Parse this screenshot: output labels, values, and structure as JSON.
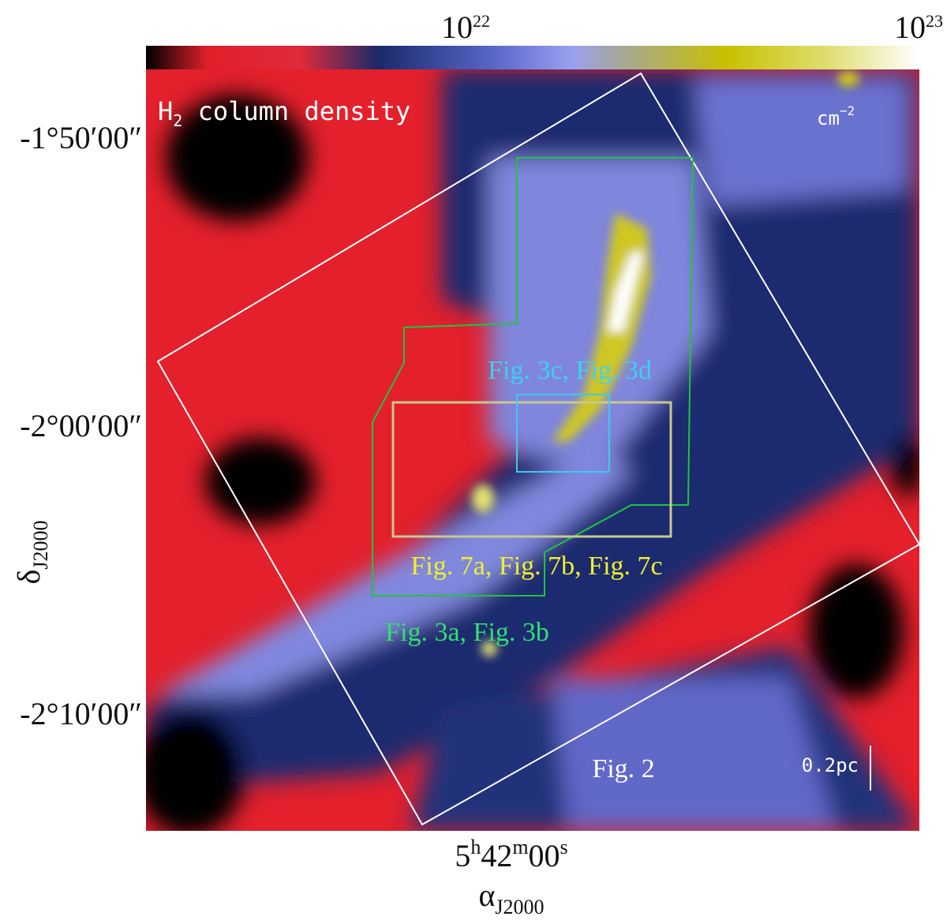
{
  "colorbar": {
    "ticks": [
      {
        "base": "10",
        "exp": "22"
      },
      {
        "base": "10",
        "exp": "23"
      }
    ],
    "unit": {
      "base": "cm",
      "exp": "−2"
    }
  },
  "map": {
    "title": {
      "main": "H",
      "sub": "2",
      "rest": " column density"
    },
    "annotations": {
      "fig3cd": "Fig. 3c, Fig. 3d",
      "fig7": "Fig. 7a, Fig. 7b, Fig. 7c",
      "fig3ab": "Fig. 3a, Fig. 3b",
      "fig2": "Fig. 2"
    },
    "scale_bar": "0.2pc"
  },
  "y_axis": {
    "label": {
      "base": "δ",
      "sub": "J2000"
    },
    "ticks": [
      "-1°50′00″",
      "-2°00′00″",
      "-2°10′00″"
    ]
  },
  "x_axis": {
    "label": {
      "base": "α",
      "sub": "J2000"
    },
    "tick": [
      "5",
      "h",
      "42",
      "m",
      "00",
      "s"
    ]
  }
}
